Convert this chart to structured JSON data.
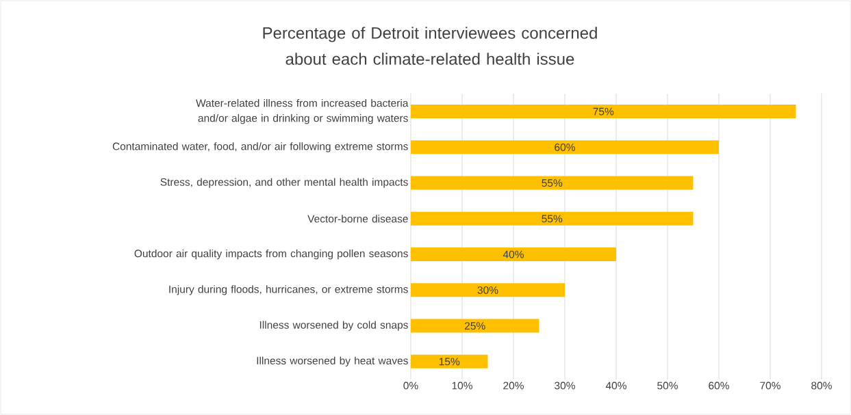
{
  "chart_data": {
    "type": "bar",
    "orientation": "horizontal",
    "title": "Percentage of Detroit interviewees concerned about each climate-related health issue",
    "categories": [
      "Water-related illness from increased bacteria and/or algae in drinking or swimming waters",
      "Contaminated water, food, and/or air following extreme storms",
      "Stress, depression, and other mental health impacts",
      "Vector-borne disease",
      "Outdoor air quality impacts from changing pollen seasons",
      "Injury during floods, hurricanes, or extreme storms",
      "Illness worsened by cold snaps",
      "Illness worsened by heat waves"
    ],
    "values": [
      75,
      60,
      55,
      55,
      40,
      30,
      25,
      15
    ],
    "value_labels": [
      "75%",
      "60%",
      "55%",
      "55%",
      "40%",
      "30%",
      "25%",
      "15%"
    ],
    "color": "#ffc000",
    "xlim": [
      0,
      80
    ],
    "xticks": [
      {
        "value": 0,
        "label": "0%"
      },
      {
        "value": 10,
        "label": "10%"
      },
      {
        "value": 20,
        "label": "20%"
      },
      {
        "value": 30,
        "label": "30%"
      },
      {
        "value": 40,
        "label": "40%"
      },
      {
        "value": 50,
        "label": "50%"
      },
      {
        "value": 60,
        "label": "60%"
      },
      {
        "value": 70,
        "label": "70%"
      },
      {
        "value": 80,
        "label": "80%"
      }
    ],
    "grid": "x"
  }
}
